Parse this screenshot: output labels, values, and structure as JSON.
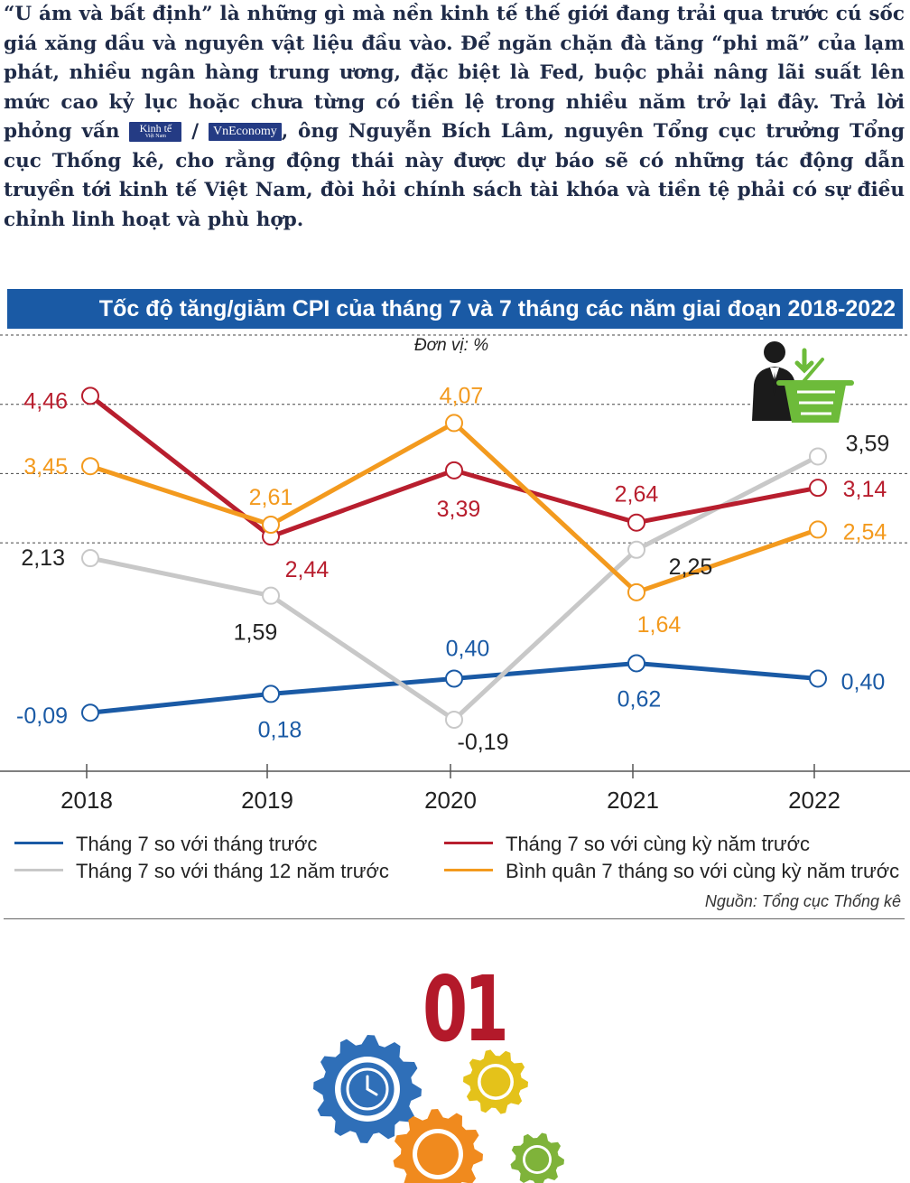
{
  "intro": {
    "before_logo": "“U ám và bất định” là những gì mà nền kinh tế thế giới đang trải qua trước cú sốc giá xăng dầu và nguyên vật liệu đầu vào. Để ngăn chặn đà tăng “phi mã” của lạm phát, nhiều ngân hàng trung ương, đặc biệt là Fed, buộc phải nâng lãi suất lên mức cao kỷ lục hoặc chưa từng có tiền lệ trong nhiều năm trở lại đây. Trả lời phỏng vấn",
    "logo_kinhte": "Kinh tế",
    "logo_kinhte_sub": "Việt Nam",
    "slash": "/",
    "logo_vneconomy": "VnEconomy",
    "after_logo": ", ông Nguyễn Bích Lâm, nguyên Tổng cục trưởng Tổng cục Thống kê, cho rằng động thái này được dự báo sẽ có những tác động dẫn truyền tới kinh tế Việt Nam, đòi hỏi chính sách tài khóa và tiền tệ phải có sự điều chỉnh linh hoạt và phù hợp."
  },
  "chart_data": {
    "type": "line",
    "title": "Tốc độ tăng/giảm CPI của tháng 7 và 7 tháng các năm giai đoạn 2018-2022",
    "unit": "Đơn vị: %",
    "x": [
      "2018",
      "2019",
      "2020",
      "2021",
      "2022"
    ],
    "series": [
      {
        "name": "Tháng 7 so với tháng trước",
        "color": "#1a5aa5",
        "values": [
          -0.09,
          0.18,
          0.4,
          0.62,
          0.4
        ],
        "labels": [
          "-0,09",
          "0,18",
          "0,40",
          "0,62",
          "0,40"
        ]
      },
      {
        "name": "Tháng 7 so với cùng kỳ năm trước",
        "color": "#b81e2e",
        "values": [
          4.46,
          2.44,
          3.39,
          2.64,
          3.14
        ],
        "labels": [
          "4,46",
          "2,44",
          "3,39",
          "2,64",
          "3,14"
        ]
      },
      {
        "name": "Tháng 7 so với tháng 12 năm trước",
        "color": "#c8c8c8",
        "values": [
          2.13,
          1.59,
          -0.19,
          2.25,
          3.59
        ],
        "labels": [
          "2,13",
          "1,59",
          "-0,19",
          "2,25",
          "3,59"
        ]
      },
      {
        "name": "Bình quân 7 tháng so với cùng kỳ năm trước",
        "color": "#f39a1e",
        "values": [
          3.45,
          2.61,
          4.07,
          1.64,
          2.54
        ],
        "labels": [
          "3,45",
          "2,61",
          "4,07",
          "1,64",
          "2,54"
        ]
      }
    ],
    "legend_position": "bottom",
    "source": "Nguồn: Tổng cục Thống kê"
  },
  "section_number": "01",
  "icons": {
    "chart_icon": "businessman-basket-icon",
    "bottom_icon": "gears-clock-icon"
  }
}
